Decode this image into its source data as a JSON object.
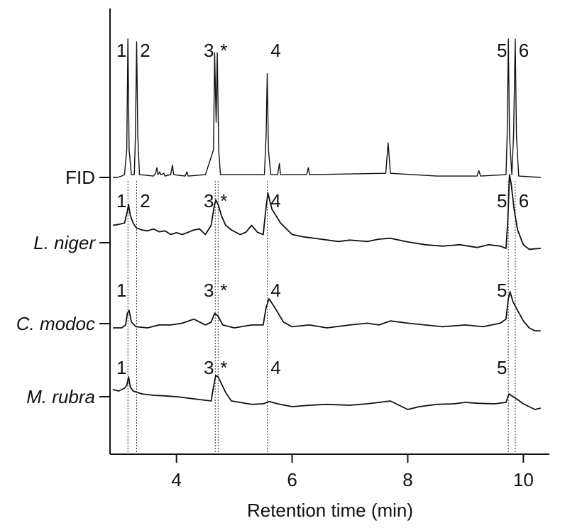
{
  "chart_data": {
    "type": "line",
    "title": "",
    "xlabel": "Retention time (min)",
    "ylabel": "",
    "xlim": [
      2.85,
      10.45
    ],
    "xticks": [
      4,
      6,
      8,
      10
    ],
    "xtick_labels": [
      "4",
      "6",
      "8",
      "10"
    ],
    "grid": false,
    "legend": "none",
    "colors": {
      "trace": "#111111",
      "axis": "#111111",
      "guide": "#333333"
    },
    "reference_lines_x": [
      3.16,
      3.31,
      4.67,
      4.72,
      5.57,
      9.74,
      9.86
    ],
    "traces": [
      {
        "label": "FID",
        "italic": false,
        "peak_labels": [
          {
            "text": "1",
            "x": 3.16
          },
          {
            "text": "2",
            "x": 3.31
          },
          {
            "text": "3",
            "x": 4.67
          },
          {
            "text": "*",
            "x": 4.72
          },
          {
            "text": "4",
            "x": 5.57
          },
          {
            "text": "5",
            "x": 9.74
          },
          {
            "text": "6",
            "x": 9.86
          }
        ],
        "points": [
          [
            2.9,
            0
          ],
          [
            2.98,
            0
          ],
          [
            3.05,
            0.01
          ],
          [
            3.1,
            0.02
          ],
          [
            3.14,
            0.2
          ],
          [
            3.16,
            1.0
          ],
          [
            3.18,
            0.2
          ],
          [
            3.22,
            0.02
          ],
          [
            3.27,
            0.02
          ],
          [
            3.29,
            0.3
          ],
          [
            3.31,
            0.98
          ],
          [
            3.33,
            0.3
          ],
          [
            3.36,
            0.02
          ],
          [
            3.6,
            0.01
          ],
          [
            3.64,
            0.03
          ],
          [
            3.66,
            0.07
          ],
          [
            3.68,
            0.02
          ],
          [
            3.71,
            0.04
          ],
          [
            3.73,
            0.02
          ],
          [
            3.78,
            0.03
          ],
          [
            3.8,
            0.01
          ],
          [
            3.9,
            0.02
          ],
          [
            3.93,
            0.09
          ],
          [
            3.95,
            0.02
          ],
          [
            4.15,
            0.01
          ],
          [
            4.18,
            0.04
          ],
          [
            4.2,
            0.01
          ],
          [
            4.5,
            0.02
          ],
          [
            4.64,
            0.2
          ],
          [
            4.66,
            0.9
          ],
          [
            4.685,
            0.4
          ],
          [
            4.705,
            0.9
          ],
          [
            4.73,
            0.2
          ],
          [
            4.76,
            0.02
          ],
          [
            5.52,
            0.02
          ],
          [
            5.55,
            0.3
          ],
          [
            5.57,
            0.75
          ],
          [
            5.59,
            0.2
          ],
          [
            5.63,
            0.02
          ],
          [
            5.75,
            0.02
          ],
          [
            5.78,
            0.1
          ],
          [
            5.8,
            0.02
          ],
          [
            6.25,
            0.02
          ],
          [
            6.28,
            0.07
          ],
          [
            6.3,
            0.02
          ],
          [
            7.62,
            0.03
          ],
          [
            7.66,
            0.25
          ],
          [
            7.7,
            0.03
          ],
          [
            8.5,
            0.01
          ],
          [
            8.6,
            0.01
          ],
          [
            9.2,
            0.01
          ],
          [
            9.23,
            0.05
          ],
          [
            9.26,
            0.01
          ],
          [
            9.7,
            0.02
          ],
          [
            9.72,
            0.3
          ],
          [
            9.74,
            1.0
          ],
          [
            9.76,
            0.3
          ],
          [
            9.8,
            0.02
          ],
          [
            9.83,
            0.3
          ],
          [
            9.86,
            1.0
          ],
          [
            9.88,
            0.3
          ],
          [
            9.92,
            0.01
          ],
          [
            10.3,
            0
          ]
        ]
      },
      {
        "label": "L. niger",
        "italic": true,
        "peak_labels": [
          {
            "text": "1",
            "x": 3.16
          },
          {
            "text": "2",
            "x": 3.31
          },
          {
            "text": "3",
            "x": 4.67
          },
          {
            "text": "*",
            "x": 4.72
          },
          {
            "text": "4",
            "x": 5.57
          },
          {
            "text": "5",
            "x": 9.74
          },
          {
            "text": "6",
            "x": 9.86
          }
        ],
        "points": [
          [
            2.9,
            0.5
          ],
          [
            3.0,
            0.52
          ],
          [
            3.1,
            0.55
          ],
          [
            3.15,
            0.8
          ],
          [
            3.17,
            0.95
          ],
          [
            3.2,
            0.72
          ],
          [
            3.25,
            0.55
          ],
          [
            3.3,
            0.45
          ],
          [
            3.4,
            0.4
          ],
          [
            3.5,
            0.38
          ],
          [
            3.6,
            0.42
          ],
          [
            3.7,
            0.36
          ],
          [
            3.8,
            0.38
          ],
          [
            3.9,
            0.3
          ],
          [
            4.0,
            0.34
          ],
          [
            4.1,
            0.3
          ],
          [
            4.2,
            0.35
          ],
          [
            4.3,
            0.4
          ],
          [
            4.4,
            0.42
          ],
          [
            4.5,
            0.3
          ],
          [
            4.6,
            0.5
          ],
          [
            4.65,
            0.9
          ],
          [
            4.68,
            1.05
          ],
          [
            4.72,
            0.95
          ],
          [
            4.78,
            0.7
          ],
          [
            4.85,
            0.5
          ],
          [
            4.95,
            0.4
          ],
          [
            5.1,
            0.3
          ],
          [
            5.2,
            0.35
          ],
          [
            5.3,
            0.5
          ],
          [
            5.4,
            0.35
          ],
          [
            5.5,
            0.3
          ],
          [
            5.55,
            0.9
          ],
          [
            5.58,
            1.2
          ],
          [
            5.65,
            0.85
          ],
          [
            5.8,
            0.55
          ],
          [
            6.0,
            0.3
          ],
          [
            6.2,
            0.25
          ],
          [
            6.5,
            0.2
          ],
          [
            6.8,
            0.15
          ],
          [
            7.0,
            0.18
          ],
          [
            7.3,
            0.15
          ],
          [
            7.5,
            0.2
          ],
          [
            7.7,
            0.22
          ],
          [
            8.0,
            0.14
          ],
          [
            8.3,
            0.08
          ],
          [
            8.6,
            0.05
          ],
          [
            8.9,
            0.08
          ],
          [
            9.2,
            0.02
          ],
          [
            9.4,
            0.08
          ],
          [
            9.6,
            0.05
          ],
          [
            9.7,
            0.0
          ],
          [
            9.73,
            0.6
          ],
          [
            9.76,
            1.6
          ],
          [
            9.79,
            1.4
          ],
          [
            9.84,
            0.85
          ],
          [
            9.9,
            0.4
          ],
          [
            10.0,
            0.08
          ],
          [
            10.1,
            -0.02
          ],
          [
            10.3,
            0.0
          ]
        ]
      },
      {
        "label": "C. modoc",
        "italic": true,
        "peak_labels": [
          {
            "text": "1",
            "x": 3.16
          },
          {
            "text": "3",
            "x": 4.67
          },
          {
            "text": "*",
            "x": 4.72
          },
          {
            "text": "4",
            "x": 5.57
          },
          {
            "text": "5",
            "x": 9.74
          }
        ],
        "points": [
          [
            2.9,
            0.0
          ],
          [
            3.05,
            0.0
          ],
          [
            3.12,
            0.05
          ],
          [
            3.15,
            0.25
          ],
          [
            3.18,
            0.3
          ],
          [
            3.22,
            0.1
          ],
          [
            3.3,
            0.02
          ],
          [
            3.5,
            0.0
          ],
          [
            3.7,
            0.05
          ],
          [
            3.9,
            0.05
          ],
          [
            4.1,
            0.08
          ],
          [
            4.3,
            0.15
          ],
          [
            4.5,
            0.05
          ],
          [
            4.6,
            0.1
          ],
          [
            4.66,
            0.25
          ],
          [
            4.72,
            0.2
          ],
          [
            4.8,
            0.05
          ],
          [
            5.0,
            0.0
          ],
          [
            5.3,
            0.05
          ],
          [
            5.5,
            0.05
          ],
          [
            5.55,
            0.35
          ],
          [
            5.6,
            0.5
          ],
          [
            5.7,
            0.35
          ],
          [
            5.85,
            0.1
          ],
          [
            6.0,
            0.02
          ],
          [
            6.3,
            0.05
          ],
          [
            6.6,
            0.0
          ],
          [
            7.0,
            0.05
          ],
          [
            7.3,
            0.08
          ],
          [
            7.5,
            0.05
          ],
          [
            7.7,
            0.12
          ],
          [
            8.0,
            0.08
          ],
          [
            8.3,
            0.05
          ],
          [
            8.6,
            0.02
          ],
          [
            9.0,
            0.05
          ],
          [
            9.3,
            0.02
          ],
          [
            9.6,
            0.08
          ],
          [
            9.7,
            0.15
          ],
          [
            9.74,
            0.5
          ],
          [
            9.77,
            0.62
          ],
          [
            9.82,
            0.45
          ],
          [
            9.9,
            0.3
          ],
          [
            10.0,
            0.12
          ],
          [
            10.1,
            0.0
          ],
          [
            10.2,
            -0.05
          ],
          [
            10.3,
            -0.05
          ]
        ]
      },
      {
        "label": "M. rubra",
        "italic": true,
        "peak_labels": [
          {
            "text": "1",
            "x": 3.16
          },
          {
            "text": "3",
            "x": 4.67
          },
          {
            "text": "*",
            "x": 4.72
          },
          {
            "text": "4",
            "x": 5.57
          },
          {
            "text": "5",
            "x": 9.74
          }
        ],
        "points": [
          [
            2.9,
            0.4
          ],
          [
            3.0,
            0.35
          ],
          [
            3.1,
            0.45
          ],
          [
            3.14,
            0.55
          ],
          [
            3.17,
            0.85
          ],
          [
            3.2,
            0.5
          ],
          [
            3.25,
            0.35
          ],
          [
            3.4,
            0.25
          ],
          [
            3.6,
            0.2
          ],
          [
            3.8,
            0.18
          ],
          [
            4.0,
            0.15
          ],
          [
            4.2,
            0.1
          ],
          [
            4.4,
            0.05
          ],
          [
            4.6,
            0.0
          ],
          [
            4.64,
            0.5
          ],
          [
            4.68,
            0.9
          ],
          [
            4.72,
            0.85
          ],
          [
            4.78,
            0.6
          ],
          [
            4.85,
            0.3
          ],
          [
            4.95,
            0.0
          ],
          [
            5.1,
            -0.05
          ],
          [
            5.3,
            -0.12
          ],
          [
            5.5,
            -0.1
          ],
          [
            5.6,
            -0.02
          ],
          [
            5.75,
            -0.1
          ],
          [
            6.0,
            -0.2
          ],
          [
            6.3,
            -0.15
          ],
          [
            6.6,
            -0.12
          ],
          [
            7.0,
            -0.15
          ],
          [
            7.3,
            -0.1
          ],
          [
            7.5,
            -0.05
          ],
          [
            7.7,
            0.0
          ],
          [
            7.85,
            -0.15
          ],
          [
            8.0,
            -0.3
          ],
          [
            8.2,
            -0.2
          ],
          [
            8.5,
            -0.12
          ],
          [
            8.8,
            -0.1
          ],
          [
            9.0,
            -0.05
          ],
          [
            9.2,
            -0.08
          ],
          [
            9.5,
            -0.1
          ],
          [
            9.7,
            -0.05
          ],
          [
            9.75,
            0.25
          ],
          [
            9.8,
            0.18
          ],
          [
            9.9,
            0.05
          ],
          [
            10.0,
            -0.1
          ],
          [
            10.1,
            -0.2
          ],
          [
            10.2,
            -0.3
          ],
          [
            10.3,
            -0.25
          ]
        ]
      }
    ]
  }
}
